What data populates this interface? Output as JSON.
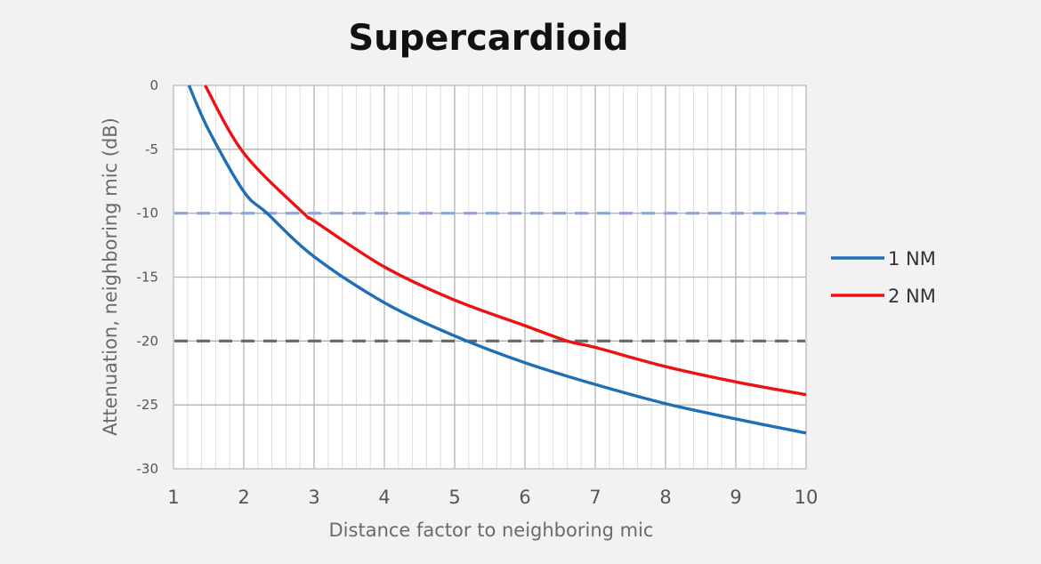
{
  "chart_data": {
    "type": "line",
    "title": "Supercardioid",
    "xlabel": "Distance factor to neighboring mic",
    "ylabel": "Attenuation, neighboring mic (dB)",
    "xlim": [
      1,
      10
    ],
    "ylim": [
      -30,
      0
    ],
    "x_ticks": [
      1,
      2,
      3,
      4,
      5,
      6,
      7,
      8,
      9,
      10
    ],
    "y_ticks": [
      0,
      -5,
      -10,
      -15,
      -20,
      -25,
      -30
    ],
    "grid": true,
    "legend_position": "right",
    "series": [
      {
        "name": "1 NM",
        "color": "#1f6fb5",
        "x": [
          1.22,
          1.5,
          2.0,
          2.33,
          3.0,
          4.0,
          5.0,
          6.0,
          7.0,
          8.0,
          9.0,
          10.0
        ],
        "y": [
          0.0,
          -3.5,
          -8.3,
          -10.0,
          -13.4,
          -17.0,
          -19.6,
          -21.7,
          -23.4,
          -24.9,
          -26.1,
          -27.2
        ]
      },
      {
        "name": "2 NM",
        "color": "#ee1111",
        "x": [
          1.45,
          2.0,
          2.85,
          3.0,
          4.0,
          5.0,
          6.0,
          6.6,
          7.0,
          8.0,
          9.0,
          10.0
        ],
        "y": [
          0.0,
          -5.3,
          -10.0,
          -10.6,
          -14.2,
          -16.8,
          -18.8,
          -20.0,
          -20.5,
          -22.0,
          -23.2,
          -24.2
        ]
      }
    ],
    "reference_lines": [
      {
        "y": -10,
        "color": "#8fa4d4",
        "style": "dashed"
      },
      {
        "y": -20,
        "color": "#666666",
        "style": "dashed"
      }
    ]
  }
}
